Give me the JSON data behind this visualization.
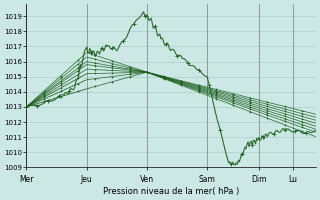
{
  "xlabel": "Pression niveau de la mer( hPa )",
  "background_color": "#cce8e4",
  "grid_color": "#aaceca",
  "line_color": "#1a5c1a",
  "ylim": [
    1009,
    1019.8
  ],
  "yticks": [
    1009,
    1010,
    1011,
    1012,
    1013,
    1014,
    1015,
    1016,
    1017,
    1018,
    1019
  ],
  "day_labels": [
    "Mer",
    "Jeu",
    "Ven",
    "Sam",
    "Dim",
    "Lu"
  ],
  "day_positions": [
    0,
    56,
    112,
    168,
    216,
    248
  ],
  "total_points": 270
}
